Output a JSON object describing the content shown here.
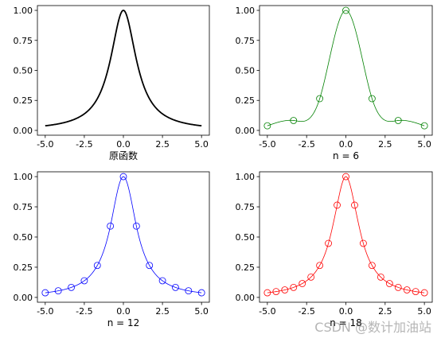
{
  "watermark": "CSDN @数计加油站",
  "chart_data": [
    {
      "type": "line",
      "xlabel": "原函数",
      "xlim": [
        -5.5,
        5.5
      ],
      "ylim": [
        -0.04,
        1.04
      ],
      "xticks": [
        "-5.0",
        "-2.5",
        "0.0",
        "2.5",
        "5.0"
      ],
      "yticks": [
        "0.00",
        "0.25",
        "0.50",
        "0.75",
        "1.00"
      ],
      "color": "#000000",
      "nodes": [],
      "series": [
        {
          "function": "1/(1+x^2)",
          "x_range": [
            -5,
            5
          ]
        }
      ]
    },
    {
      "type": "line",
      "xlabel": "n = 6",
      "xlim": [
        -5.5,
        5.5
      ],
      "ylim": [
        -0.04,
        1.04
      ],
      "xticks": [
        "-5.0",
        "-2.5",
        "0.0",
        "2.5",
        "5.0"
      ],
      "yticks": [
        "0.00",
        "0.25",
        "0.50",
        "0.75",
        "1.00"
      ],
      "color": "#008000",
      "nodes": [
        -5,
        -3.333,
        -1.667,
        0,
        1.667,
        3.333,
        5
      ],
      "series": [
        {
          "function": "spline interpolation of 1/(1+x^2)",
          "x_range": [
            -5,
            5
          ]
        }
      ]
    },
    {
      "type": "line",
      "xlabel": "n = 12",
      "xlim": [
        -5.5,
        5.5
      ],
      "ylim": [
        -0.04,
        1.04
      ],
      "xticks": [
        "-5.0",
        "-2.5",
        "0.0",
        "2.5",
        "5.0"
      ],
      "yticks": [
        "0.00",
        "0.25",
        "0.50",
        "0.75",
        "1.00"
      ],
      "color": "#0000ff",
      "nodes": [
        -5,
        -4.167,
        -3.333,
        -2.5,
        -1.667,
        -0.833,
        0,
        0.833,
        1.667,
        2.5,
        3.333,
        4.167,
        5
      ],
      "series": [
        {
          "function": "spline interpolation of 1/(1+x^2)",
          "x_range": [
            -5,
            5
          ]
        }
      ]
    },
    {
      "type": "line",
      "xlabel": "n = 18",
      "xlim": [
        -5.5,
        5.5
      ],
      "ylim": [
        -0.04,
        1.04
      ],
      "xticks": [
        "-5.0",
        "-2.5",
        "0.0",
        "2.5",
        "5.0"
      ],
      "yticks": [
        "0.00",
        "0.25",
        "0.50",
        "0.75",
        "1.00"
      ],
      "color": "#ff0000",
      "nodes": [
        -5,
        -4.444,
        -3.889,
        -3.333,
        -2.778,
        -2.222,
        -1.667,
        -1.111,
        -0.556,
        0,
        0.556,
        1.111,
        1.667,
        2.222,
        2.778,
        3.333,
        3.889,
        4.444,
        5
      ],
      "series": [
        {
          "function": "spline interpolation of 1/(1+x^2)",
          "x_range": [
            -5,
            5
          ]
        }
      ]
    }
  ]
}
